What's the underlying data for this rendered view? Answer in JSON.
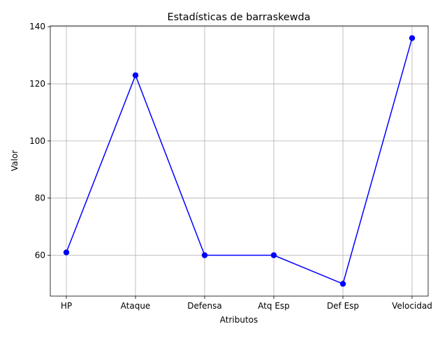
{
  "chart_data": {
    "type": "line",
    "title": "Estadísticas de barraskewda",
    "xlabel": "Atributos",
    "ylabel": "Valor",
    "categories": [
      "HP",
      "Ataque",
      "Defensa",
      "Atq Esp",
      "Def Esp",
      "Velocidad"
    ],
    "series": [
      {
        "values": [
          61,
          123,
          60,
          60,
          50,
          136
        ],
        "color": "#0000ff",
        "marker": "circle"
      }
    ],
    "ylim": [
      45.7,
      140.3
    ],
    "yticks": [
      60,
      80,
      100,
      120,
      140
    ],
    "grid": true,
    "grid_color": "#b0b0b0"
  }
}
